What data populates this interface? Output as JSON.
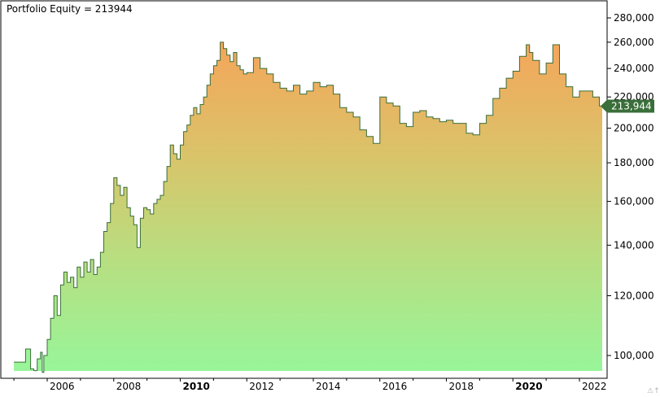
{
  "chart_data": {
    "type": "area",
    "title": "Portfolio Equity = 213944",
    "last_value_label": "213,944",
    "y_ticks": [
      100000,
      120000,
      140000,
      160000,
      180000,
      200000,
      220000,
      240000,
      260000,
      280000
    ],
    "y_tick_labels": [
      "100,000",
      "120,000",
      "140,000",
      "160,000",
      "180,000",
      "200,000",
      "220,000",
      "240,000",
      "260,000",
      "280,000"
    ],
    "x_ticks": [
      {
        "year": 2006,
        "label": "2006",
        "bold": false
      },
      {
        "year": 2008,
        "label": "2008",
        "bold": false
      },
      {
        "year": 2010,
        "label": "2010",
        "bold": true
      },
      {
        "year": 2012,
        "label": "2012",
        "bold": false
      },
      {
        "year": 2014,
        "label": "2014",
        "bold": false
      },
      {
        "year": 2016,
        "label": "2016",
        "bold": false
      },
      {
        "year": 2018,
        "label": "2018",
        "bold": false
      },
      {
        "year": 2020,
        "label": "2020",
        "bold": true
      },
      {
        "year": 2022,
        "label": "2022",
        "bold": false
      }
    ],
    "xlim": [
      2005.0,
      2022.75
    ],
    "y_scale": "log",
    "ylim": [
      93000,
      290000
    ],
    "grid": false,
    "series": [
      {
        "x": [
          2005.0,
          2005.3,
          2005.35,
          2005.5,
          2005.6,
          2005.7,
          2005.8,
          2005.85,
          2005.9,
          2006.0,
          2006.1,
          2006.2,
          2006.3,
          2006.4,
          2006.5,
          2006.6,
          2006.7,
          2006.8,
          2006.9,
          2007.0,
          2007.1,
          2007.2,
          2007.3,
          2007.4,
          2007.5,
          2007.6,
          2007.7,
          2007.8,
          2007.9,
          2008.0,
          2008.1,
          2008.2,
          2008.3,
          2008.4,
          2008.5,
          2008.6,
          2008.7,
          2008.8,
          2008.9,
          2009.0,
          2009.1,
          2009.2,
          2009.3,
          2009.4,
          2009.5,
          2009.6,
          2009.7,
          2009.8,
          2009.9,
          2010.0,
          2010.1,
          2010.2,
          2010.3,
          2010.4,
          2010.5,
          2010.6,
          2010.7,
          2010.8,
          2010.9,
          2011.0,
          2011.1,
          2011.2,
          2011.3,
          2011.4,
          2011.5,
          2011.6,
          2011.7,
          2011.8,
          2011.9,
          2012.0,
          2012.2,
          2012.4,
          2012.6,
          2012.8,
          2013.0,
          2013.2,
          2013.4,
          2013.6,
          2013.8,
          2014.0,
          2014.2,
          2014.4,
          2014.6,
          2014.8,
          2015.0,
          2015.2,
          2015.4,
          2015.6,
          2015.8,
          2016.0,
          2016.2,
          2016.4,
          2016.6,
          2016.8,
          2017.0,
          2017.2,
          2017.4,
          2017.6,
          2017.8,
          2018.0,
          2018.2,
          2018.4,
          2018.6,
          2018.8,
          2019.0,
          2019.2,
          2019.4,
          2019.6,
          2019.8,
          2020.0,
          2020.2,
          2020.4,
          2020.5,
          2020.6,
          2020.8,
          2021.0,
          2021.2,
          2021.4,
          2021.6,
          2021.8,
          2022.0,
          2022.2,
          2022.4,
          2022.6,
          2022.75
        ],
        "y": [
          98000,
          98000,
          102000,
          96000,
          95500,
          99000,
          101000,
          95000,
          100000,
          105000,
          112000,
          120000,
          113000,
          124000,
          129000,
          125000,
          127000,
          123000,
          131000,
          127000,
          133000,
          129000,
          134000,
          128000,
          131000,
          137000,
          146000,
          150000,
          159000,
          172000,
          168000,
          163000,
          167000,
          157000,
          153000,
          149000,
          139000,
          152000,
          157000,
          156000,
          154000,
          159000,
          161000,
          163000,
          170000,
          178000,
          190000,
          185000,
          182000,
          190000,
          198000,
          202000,
          208000,
          213000,
          209000,
          215000,
          220000,
          228000,
          236000,
          242000,
          246000,
          260000,
          255000,
          250000,
          245000,
          252000,
          242000,
          239000,
          236000,
          237000,
          248000,
          240000,
          236000,
          230000,
          226000,
          224000,
          228000,
          222000,
          224000,
          230000,
          227000,
          228000,
          222000,
          213000,
          210000,
          207000,
          199000,
          195000,
          191000,
          220000,
          216000,
          214000,
          203000,
          201000,
          210000,
          211000,
          207000,
          206000,
          204000,
          205000,
          203000,
          203000,
          197000,
          196000,
          203000,
          208000,
          219000,
          226000,
          233000,
          238000,
          249000,
          258000,
          252000,
          246000,
          236000,
          244000,
          258000,
          236000,
          227000,
          220000,
          224000,
          224000,
          220000,
          214000,
          213944
        ]
      }
    ]
  }
}
